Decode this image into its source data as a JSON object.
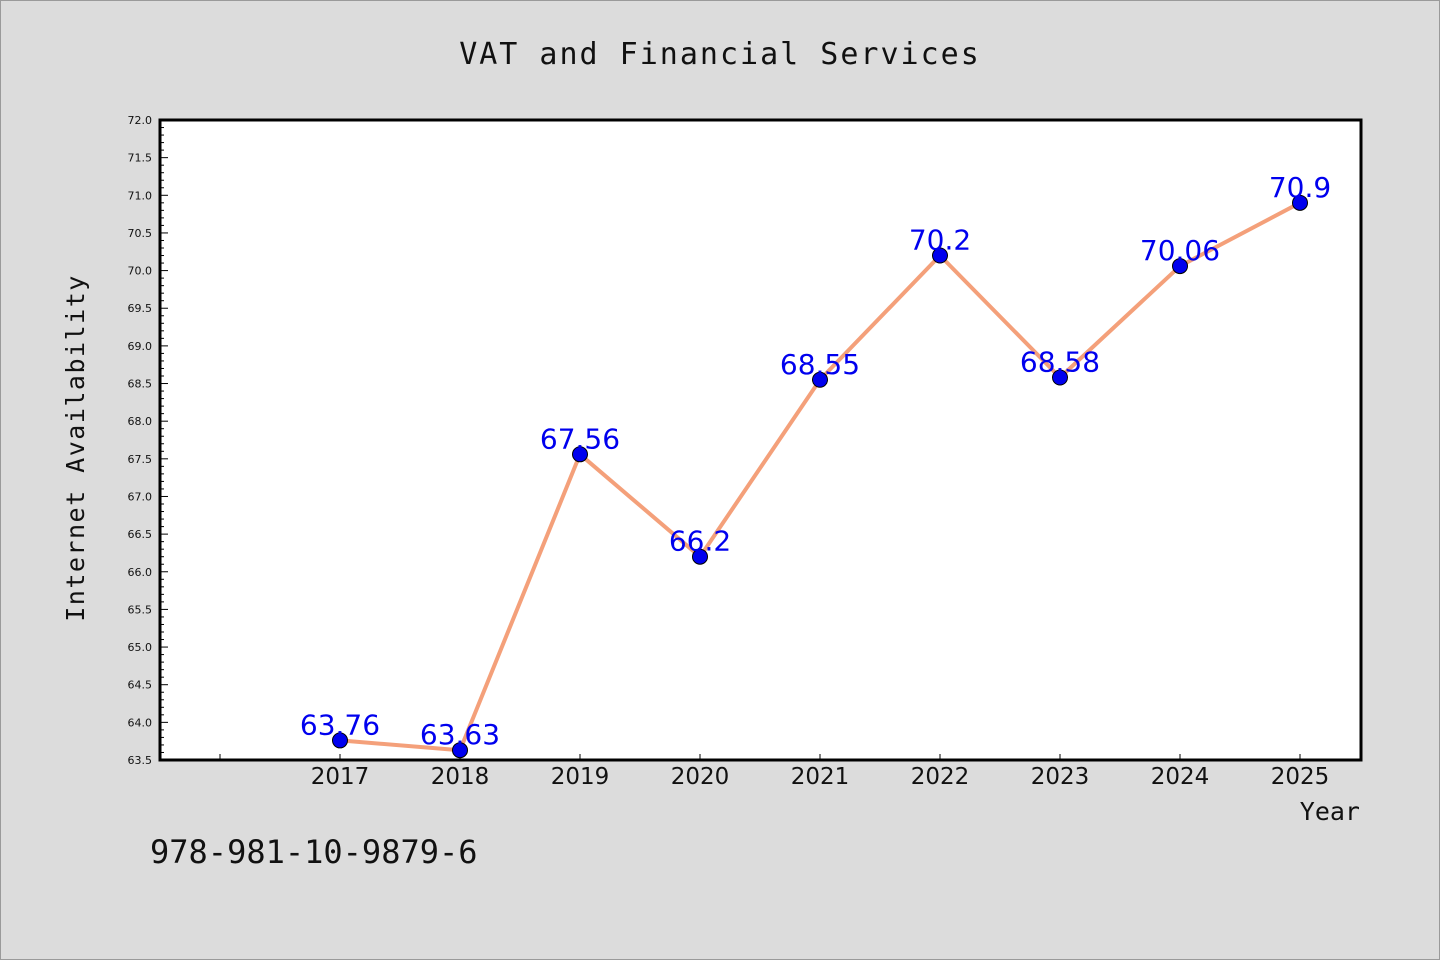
{
  "chart_data": {
    "type": "line",
    "title": "VAT and Financial Services",
    "xlabel": "Year",
    "ylabel": "Internet Availability",
    "categories": [
      "2017",
      "2018",
      "2019",
      "2020",
      "2021",
      "2022",
      "2023",
      "2024",
      "2025"
    ],
    "series": [
      {
        "values": [
          63.76,
          63.63,
          67.56,
          66.2,
          68.55,
          70.2,
          68.58,
          70.06,
          70.9
        ]
      }
    ],
    "data_labels": [
      "63.76",
      "63.63",
      "67.56",
      "66.2",
      "68.55",
      "70.2",
      "68.58",
      "70.06",
      "70.9"
    ],
    "ylim": [
      63.5,
      72.0
    ],
    "yticks": [
      "63.5",
      "64.0",
      "64.5",
      "65.0",
      "65.5",
      "66.0",
      "66.5",
      "67.0",
      "67.5",
      "68.0",
      "68.5",
      "69.0",
      "69.5",
      "70.0",
      "70.5",
      "71.0",
      "71.5",
      "72.0"
    ],
    "grid": false,
    "line_color": "#f4a07a",
    "marker_color": "#0000ee",
    "label_color": "#0000ee"
  },
  "footer": {
    "code": "978-981-10-9879-6"
  }
}
